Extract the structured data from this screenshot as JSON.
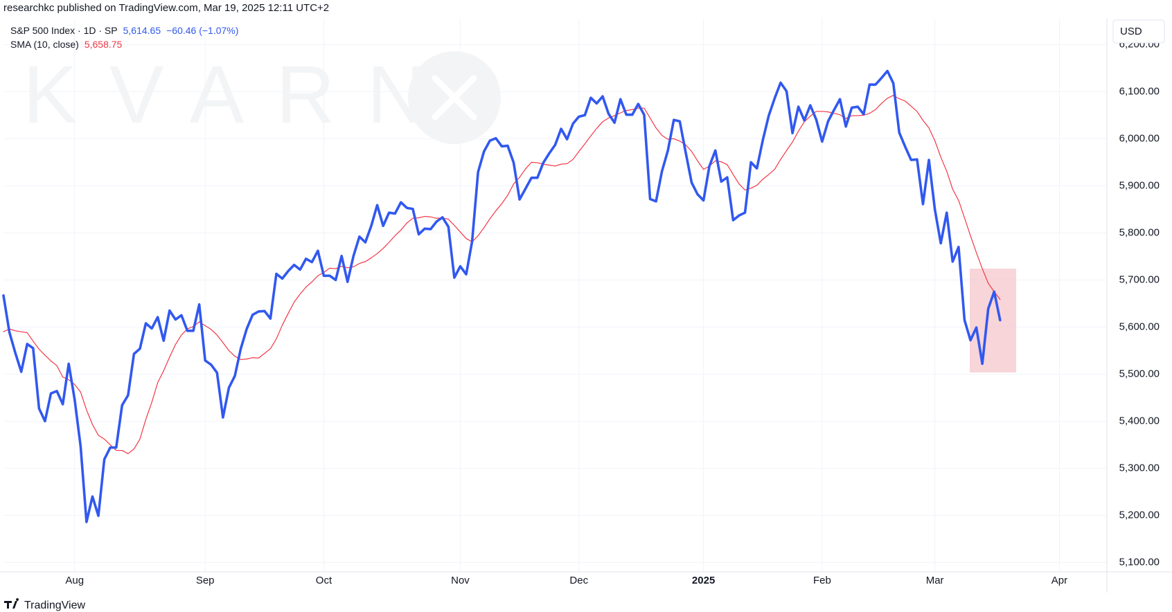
{
  "header": {
    "publisher": "researchkc published on TradingView.com, Mar 19, 2025 12:11 UTC+2"
  },
  "watermark": "KVARN",
  "currency": "USD",
  "footer": {
    "brand": "TradingView"
  },
  "chart_data": {
    "type": "line",
    "xlim": [
      0,
      186
    ],
    "ylim": [
      5080,
      6255
    ],
    "xticks": [
      {
        "value": 12,
        "label": "Aug"
      },
      {
        "value": 34,
        "label": "Sep"
      },
      {
        "value": 54,
        "label": "Oct"
      },
      {
        "value": 77,
        "label": "Nov"
      },
      {
        "value": 97,
        "label": "Dec"
      },
      {
        "value": 118,
        "label": "2025"
      },
      {
        "value": 138,
        "label": "Feb"
      },
      {
        "value": 157,
        "label": "Mar"
      },
      {
        "value": 178,
        "label": "Apr"
      }
    ],
    "yticks": [
      {
        "value": 5100,
        "label": "5,100.00"
      },
      {
        "value": 5200,
        "label": "5,200.00"
      },
      {
        "value": 5300,
        "label": "5,300.00"
      },
      {
        "value": 5400,
        "label": "5,400.00"
      },
      {
        "value": 5500,
        "label": "5,500.00"
      },
      {
        "value": 5600,
        "label": "5,600.00"
      },
      {
        "value": 5700,
        "label": "5,700.00"
      },
      {
        "value": 5800,
        "label": "5,800.00"
      },
      {
        "value": 5900,
        "label": "5,900.00"
      },
      {
        "value": 6000,
        "label": "6,000.00"
      },
      {
        "value": 6100,
        "label": "6,100.00"
      },
      {
        "value": 6200,
        "label": "6,200.00"
      }
    ],
    "grid": true,
    "series": [
      {
        "name": "S&P 500 Index · 1D · SP",
        "color": "#3158ef",
        "width": 3.6,
        "last_value_label": "5,614.65",
        "change_label": "−60.46 (−1.07%)",
        "values": [
          5667,
          5589,
          5545,
          5505,
          5564,
          5555,
          5427,
          5400,
          5459,
          5464,
          5436,
          5522,
          5446,
          5347,
          5186,
          5240,
          5199,
          5319,
          5344,
          5344,
          5434,
          5455,
          5543,
          5554,
          5608,
          5597,
          5621,
          5571,
          5635,
          5616,
          5625,
          5592,
          5592,
          5648,
          5529,
          5520,
          5503,
          5408,
          5471,
          5496,
          5554,
          5596,
          5626,
          5633,
          5634,
          5618,
          5713,
          5703,
          5719,
          5732,
          5722,
          5745,
          5738,
          5762,
          5709,
          5709,
          5700,
          5751,
          5696,
          5751,
          5792,
          5780,
          5815,
          5859,
          5815,
          5843,
          5841,
          5865,
          5853,
          5851,
          5797,
          5809,
          5808,
          5824,
          5833,
          5813,
          5705,
          5729,
          5712,
          5782,
          5929,
          5973,
          5996,
          6001,
          5984,
          5985,
          5949,
          5871,
          5894,
          5917,
          5917,
          5949,
          5969,
          5987,
          6021,
          5999,
          6032,
          6047,
          6050,
          6087,
          6075,
          6090,
          6053,
          6034,
          6084,
          6051,
          6051,
          6074,
          6051,
          5872,
          5867,
          5931,
          5975,
          6040,
          6037,
          5971,
          5907,
          5882,
          5869,
          5942,
          5975,
          5909,
          5918,
          5827,
          5837,
          5843,
          5950,
          5937,
          5997,
          6049,
          6086,
          6119,
          6101,
          6012,
          6068,
          6039,
          6071,
          6041,
          5994,
          6037,
          6061,
          6084,
          6026,
          6066,
          6068,
          6052,
          6115,
          6115,
          6129,
          6144,
          6118,
          6013,
          5983,
          5955,
          5956,
          5861,
          5955,
          5850,
          5778,
          5843,
          5739,
          5770,
          5615,
          5572,
          5599,
          5522,
          5639,
          5675.12,
          5614.65
        ]
      },
      {
        "name": "SMA (10, close)",
        "color": "#f23645",
        "width": 1.2,
        "last_value_label": "5,658.75",
        "values": [
          5590,
          5596,
          5592,
          5590,
          5588,
          5570,
          5553,
          5540,
          5528,
          5518,
          5494,
          5488,
          5478,
          5462,
          5424,
          5393,
          5370,
          5362,
          5350,
          5338,
          5338,
          5331,
          5341,
          5362,
          5404,
          5440,
          5482,
          5507,
          5536,
          5563,
          5583,
          5596,
          5601,
          5611,
          5603,
          5595,
          5583,
          5567,
          5550,
          5538,
          5531,
          5532,
          5535,
          5534,
          5544,
          5554,
          5575,
          5604,
          5629,
          5653,
          5670,
          5685,
          5696,
          5709,
          5716,
          5725,
          5724,
          5729,
          5726,
          5728,
          5735,
          5739,
          5747,
          5756,
          5767,
          5780,
          5794,
          5806,
          5821,
          5831,
          5832,
          5835,
          5834,
          5831,
          5832,
          5829,
          5816,
          5802,
          5788,
          5781,
          5794,
          5811,
          5830,
          5847,
          5862,
          5880,
          5904,
          5918,
          5936,
          5950,
          5949,
          5946,
          5944,
          5942,
          5946,
          5947,
          5956,
          5973,
          5989,
          6006,
          6022,
          6036,
          6044,
          6049,
          6055,
          6060,
          6062,
          6065,
          6065,
          6044,
          6023,
          6007,
          5999,
          6000,
          5995,
          5987,
          5973,
          5953,
          5935,
          5942,
          5953,
          5951,
          5945,
          5924,
          5904,
          5891,
          5895,
          5901,
          5914,
          5924,
          5935,
          5956,
          5975,
          5993,
          6016,
          6036,
          6048,
          6058,
          6058,
          6057,
          6054,
          6051,
          6043,
          6049,
          6049,
          6050,
          6054,
          6062,
          6075,
          6086,
          6092,
          6085,
          6080,
          6069,
          6058,
          6039,
          6023,
          5996,
          5961,
          5931,
          5893,
          5869,
          5832,
          5794,
          5758,
          5724,
          5693,
          5675,
          5658.75
        ]
      }
    ]
  }
}
